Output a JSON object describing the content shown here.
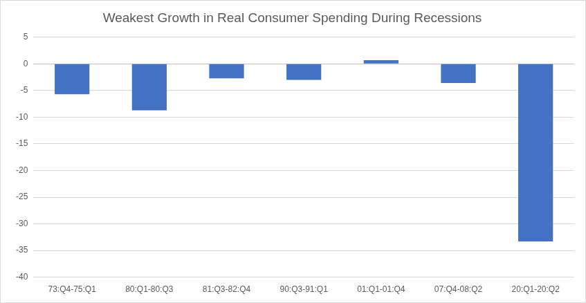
{
  "chart_data": {
    "type": "bar",
    "title": "Weakest Growth in Real Consumer Spending During Recessions",
    "categories": [
      "73:Q4-75:Q1",
      "80:Q1-80:Q3",
      "81:Q3-82:Q4",
      "90:Q3-91:Q1",
      "01:Q1-01:Q4",
      "07:Q4-08:Q2",
      "20:Q1-20:Q2"
    ],
    "values": [
      -5.7,
      -8.7,
      -2.7,
      -3.0,
      0.7,
      -3.6,
      -33.3
    ],
    "color": "#4472c4",
    "ylim": [
      -40,
      5
    ],
    "yticks": [
      -40,
      -35,
      -30,
      -25,
      -20,
      -15,
      -10,
      -5,
      0,
      5
    ],
    "grid": true
  }
}
